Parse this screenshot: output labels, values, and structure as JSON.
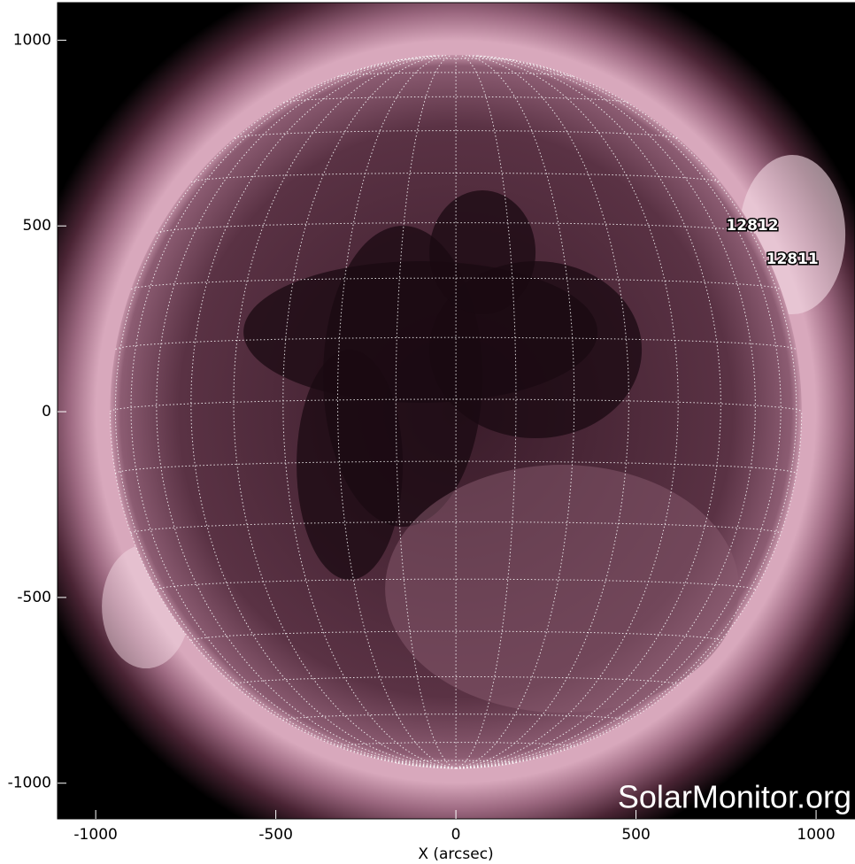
{
  "chart_data": {
    "type": "image",
    "xlabel": "X (arcsec)",
    "xlim": [
      -1106,
      1108
    ],
    "ylim": [
      -1096,
      1101
    ],
    "xticks": [
      -1000,
      -500,
      0,
      500,
      1000
    ],
    "yticks": [
      -1000,
      -500,
      0,
      500,
      1000
    ],
    "annotations": [
      {
        "text": "12812",
        "x": 823,
        "y": 500
      },
      {
        "text": "12811",
        "x": 934,
        "y": 410
      }
    ],
    "watermark": "SolarMonitor.org"
  }
}
